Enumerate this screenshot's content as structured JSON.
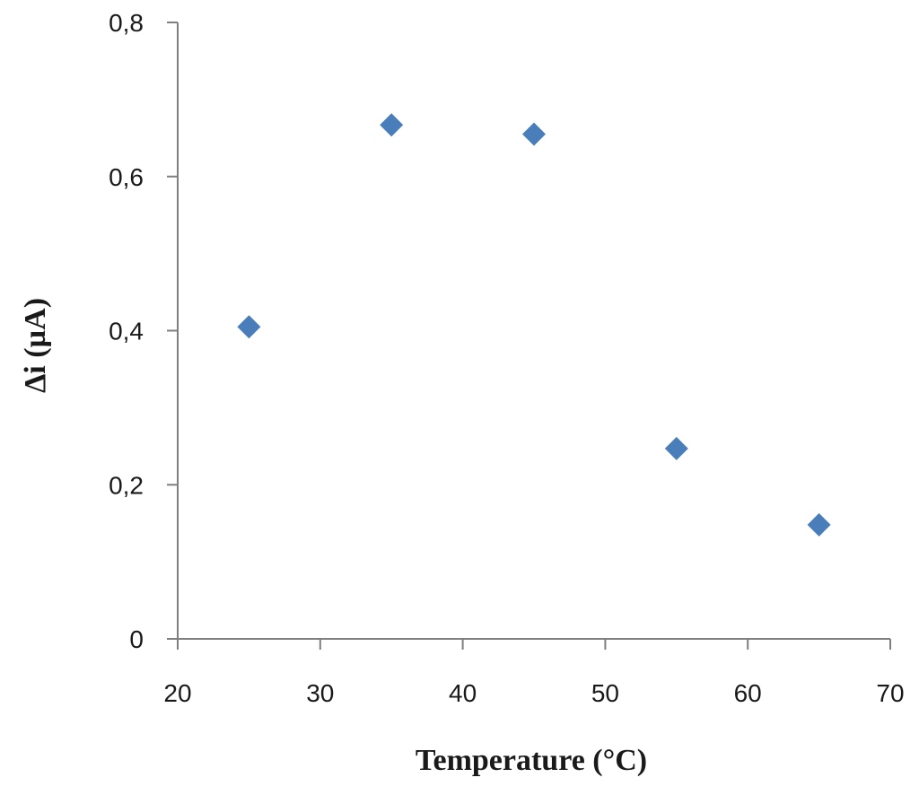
{
  "chart_data": {
    "type": "scatter",
    "title": "",
    "xlabel": "Temperature (°C)",
    "ylabel": "Δi (µA)",
    "xlim": [
      20,
      70
    ],
    "ylim": [
      0,
      0.8
    ],
    "xticks": [
      20,
      30,
      40,
      50,
      60,
      70
    ],
    "xtick_labels": [
      "20",
      "30",
      "40",
      "50",
      "60",
      "70"
    ],
    "yticks": [
      0,
      0.2,
      0.4,
      0.6,
      0.8
    ],
    "ytick_labels": [
      "0",
      "0,2",
      "0,4",
      "0,6",
      "0,8"
    ],
    "grid": false,
    "legend": false,
    "marker": "diamond",
    "marker_color": "#4a7ebb",
    "series": [
      {
        "x": [
          25,
          35,
          45,
          55,
          65
        ],
        "y": [
          0.405,
          0.667,
          0.655,
          0.247,
          0.148
        ]
      }
    ]
  }
}
